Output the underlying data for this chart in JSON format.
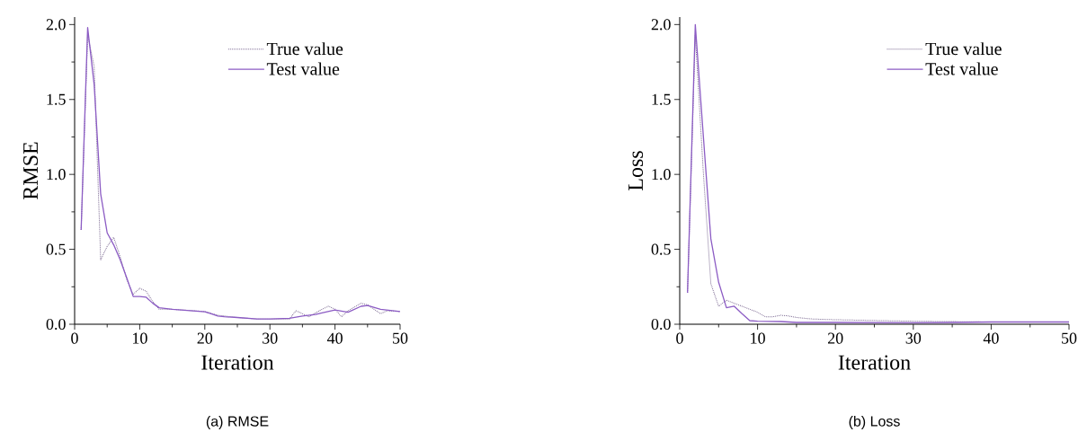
{
  "chart_data": [
    {
      "type": "line",
      "xlabel": "Iteration",
      "ylabel": "RMSE",
      "annotations": [
        "(a) RMSE"
      ],
      "legend": "top right",
      "xlim": [
        0,
        50
      ],
      "ylim": [
        0,
        2.05
      ],
      "xticks": [
        0,
        10,
        20,
        30,
        40,
        50
      ],
      "yticks": [
        {
          "value": 0,
          "label": "0.0"
        },
        {
          "value": 0.5,
          "label": "0.5"
        },
        {
          "value": 1,
          "label": "1.0"
        },
        {
          "value": 1.5,
          "label": "1.5"
        },
        {
          "value": 2,
          "label": "2.0"
        }
      ],
      "series": [
        {
          "name": "True value",
          "color": "#7d6b93",
          "line_style": "dotted",
          "x": [
            1,
            2,
            3,
            4,
            5,
            6,
            7,
            8,
            9,
            10,
            11,
            12,
            13,
            15,
            20,
            22,
            25,
            28,
            30,
            33,
            34,
            35,
            36,
            38,
            39,
            40,
            41,
            42,
            44,
            45,
            47,
            48,
            50
          ],
          "values": [
            0.63,
            1.93,
            1.72,
            0.43,
            0.52,
            0.58,
            0.45,
            0.3,
            0.2,
            0.24,
            0.22,
            0.15,
            0.1,
            0.1,
            0.085,
            0.06,
            0.045,
            0.035,
            0.035,
            0.035,
            0.09,
            0.07,
            0.05,
            0.1,
            0.12,
            0.1,
            0.05,
            0.09,
            0.14,
            0.13,
            0.07,
            0.09,
            0.085
          ]
        },
        {
          "name": "Test value",
          "color": "#8c5cc4",
          "line_style": "solid",
          "x": [
            1,
            2,
            3,
            4,
            5,
            6,
            7,
            8,
            9,
            10,
            11,
            12,
            13,
            15,
            20,
            21,
            22,
            23,
            25,
            28,
            30,
            33,
            35,
            37,
            38,
            40,
            42,
            44,
            45,
            47,
            50
          ],
          "values": [
            0.63,
            1.98,
            1.6,
            0.87,
            0.61,
            0.53,
            0.43,
            0.31,
            0.185,
            0.185,
            0.18,
            0.14,
            0.11,
            0.1,
            0.083,
            0.07,
            0.055,
            0.05,
            0.045,
            0.035,
            0.035,
            0.04,
            0.055,
            0.065,
            0.075,
            0.095,
            0.08,
            0.12,
            0.125,
            0.1,
            0.085
          ]
        }
      ]
    },
    {
      "type": "line",
      "xlabel": "Iteration",
      "ylabel": "Loss",
      "annotations": [
        "(b) Loss"
      ],
      "legend": "top right",
      "xlim": [
        0,
        50
      ],
      "ylim": [
        0,
        2.05
      ],
      "xticks": [
        0,
        10,
        20,
        30,
        40,
        50
      ],
      "yticks": [
        {
          "value": 0,
          "label": "0.0"
        },
        {
          "value": 0.5,
          "label": "0.5"
        },
        {
          "value": 1,
          "label": "1.0"
        },
        {
          "value": 1.5,
          "label": "1.5"
        },
        {
          "value": 2,
          "label": "2.0"
        }
      ],
      "series": [
        {
          "name": "True value",
          "color": "#7d6b93",
          "line_style": "dotted",
          "x": [
            1,
            2,
            3,
            4,
            5,
            6,
            7,
            8,
            9,
            10,
            11,
            12,
            13,
            14,
            15,
            17,
            20,
            25,
            30,
            40,
            50
          ],
          "values": [
            0.21,
            1.93,
            1.04,
            0.27,
            0.12,
            0.16,
            0.14,
            0.12,
            0.1,
            0.08,
            0.05,
            0.05,
            0.06,
            0.055,
            0.045,
            0.035,
            0.03,
            0.025,
            0.02,
            0.015,
            0.015
          ]
        },
        {
          "name": "Test value",
          "color": "#8c5cc4",
          "line_style": "solid",
          "x": [
            1,
            2,
            3,
            4,
            5,
            6,
            7,
            8,
            9,
            10,
            13,
            15,
            20,
            30,
            35,
            40,
            50
          ],
          "values": [
            0.21,
            2.0,
            1.28,
            0.57,
            0.28,
            0.11,
            0.12,
            0.07,
            0.024,
            0.02,
            0.018,
            0.012,
            0.012,
            0.01,
            0.012,
            0.015,
            0.015
          ]
        }
      ]
    }
  ]
}
